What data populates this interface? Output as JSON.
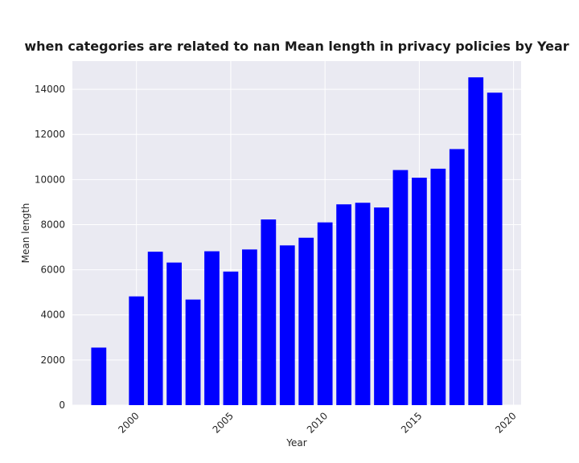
{
  "chart_data": {
    "type": "bar",
    "title": "when categories are related to nan Mean length in privacy policies by Year",
    "xlabel": "Year",
    "ylabel": "Mean length",
    "x": [
      1998,
      2000,
      2001,
      2002,
      2003,
      2004,
      2005,
      2006,
      2007,
      2008,
      2009,
      2010,
      2011,
      2012,
      2013,
      2014,
      2015,
      2016,
      2017,
      2018,
      2019
    ],
    "values": [
      2550,
      4820,
      6800,
      6320,
      4680,
      6820,
      5920,
      6900,
      8230,
      7080,
      7420,
      8100,
      8900,
      8970,
      8760,
      10420,
      10080,
      10480,
      11350,
      14530,
      13850
    ],
    "xlim": [
      1996.6,
      2020.4
    ],
    "ylim": [
      0,
      15250
    ],
    "xticks": [
      2000,
      2005,
      2010,
      2015,
      2020
    ],
    "yticks": [
      0,
      2000,
      4000,
      6000,
      8000,
      10000,
      12000,
      14000
    ],
    "bar_color": "#0000ff",
    "plot_background": "#eaeaf2",
    "grid": true,
    "legend": "none"
  }
}
